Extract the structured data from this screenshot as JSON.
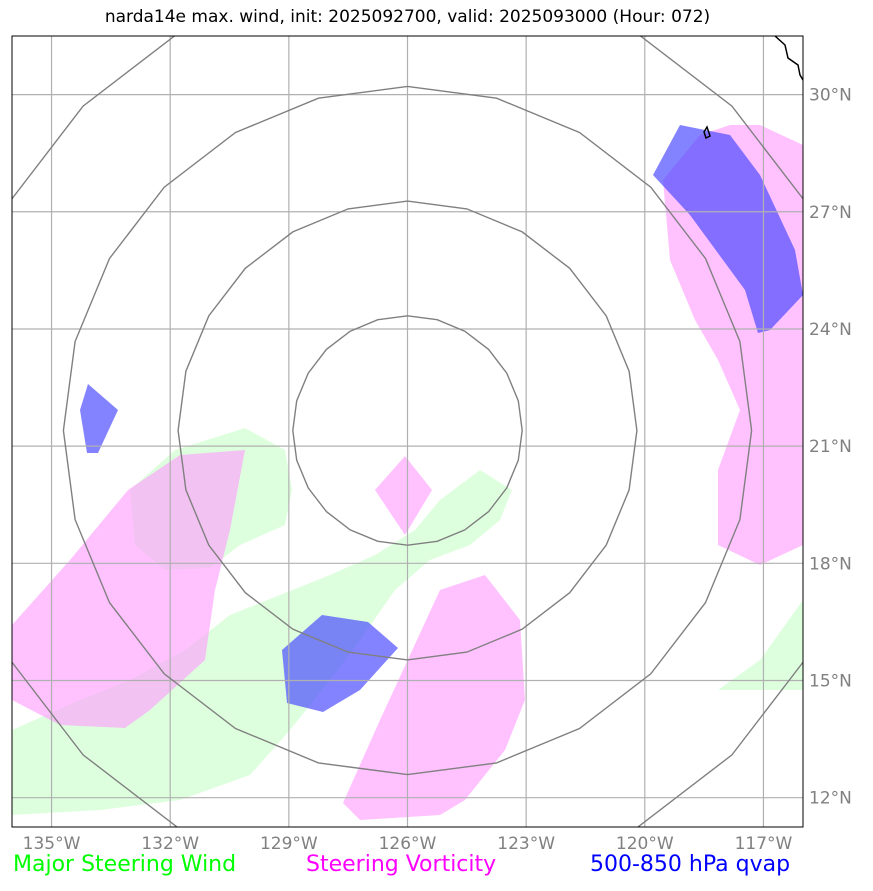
{
  "title": "narda14e max. wind, init: 2025092700, valid: 2025093000 (Hour: 072)",
  "map": {
    "lon_range": [
      -136,
      -116
    ],
    "lat_range": [
      11.25,
      31.5
    ],
    "grid_lons": [
      -135,
      -132,
      -129,
      -126,
      -123,
      -120,
      -117
    ],
    "grid_lats": [
      12,
      15,
      18,
      21,
      24,
      27,
      30
    ],
    "lon_labels": [
      "135°W",
      "132°W",
      "129°W",
      "126°W",
      "123°W",
      "120°W",
      "117°W"
    ],
    "lat_labels": [
      "12°N",
      "15°N",
      "18°N",
      "21°N",
      "24°N",
      "27°N",
      "30°N"
    ],
    "storm_center": {
      "lon": -126,
      "lat": 21.4
    },
    "range_rings_deg": [
      2.9,
      5.8,
      8.7,
      11.6
    ],
    "colors": {
      "grid": "#b0b0b0",
      "rings": "#808080",
      "steering_wind": "#ccffcc",
      "steering_vorticity": "#ff99ff",
      "qvap": "#4040ff"
    }
  },
  "legend": {
    "steering_wind": "Major Steering Wind",
    "steering_vorticity": "Steering Vorticity",
    "qvap": "500-850 hPa qvap"
  }
}
